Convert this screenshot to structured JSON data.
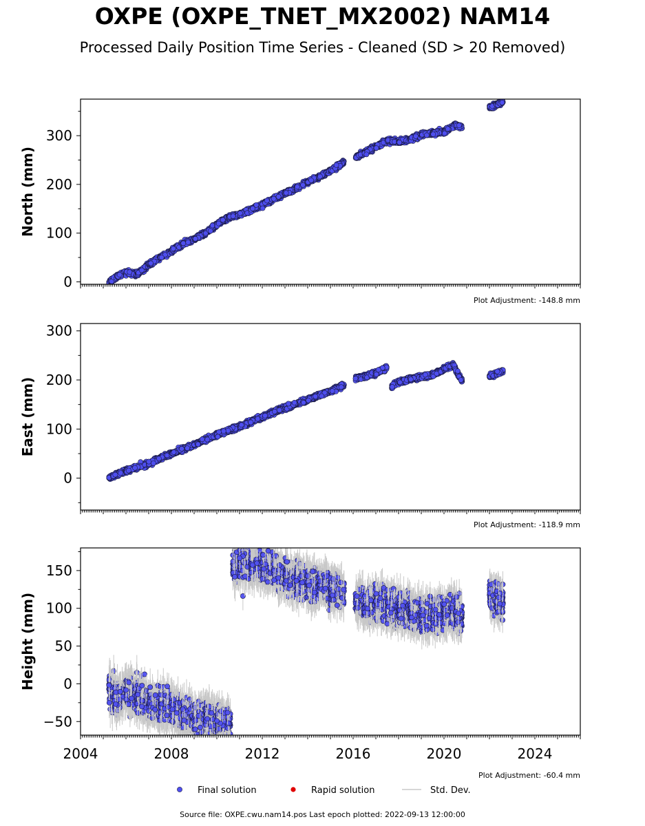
{
  "title": "OXPE (OXPE_TNET_MX2002) NAM14",
  "subtitle": "Processed Daily Position Time Series - Cleaned (SD > 20 Removed)",
  "chart_data": [
    {
      "type": "scatter",
      "ylabel": "North (mm)",
      "adjustment": "Plot Adjustment: -148.8 mm",
      "xlim": [
        2004,
        2026
      ],
      "ylim": [
        -5,
        375
      ],
      "yticks": [
        0,
        100,
        200,
        300
      ],
      "segments": [
        {
          "x": [
            2005.25,
            2005.6,
            2006.0,
            2006.5,
            2007.0,
            2007.5,
            2008.0,
            2008.5,
            2009.0,
            2009.5,
            2010.0,
            2010.5,
            2011.0,
            2011.5,
            2012.0,
            2012.5,
            2013.0,
            2013.5,
            2014.0,
            2014.5,
            2015.0,
            2015.6
          ],
          "y": [
            0,
            10,
            20,
            15,
            35,
            50,
            62,
            78,
            88,
            100,
            118,
            132,
            138,
            148,
            158,
            170,
            182,
            192,
            205,
            215,
            228,
            245
          ]
        },
        {
          "x": [
            2016.1,
            2016.5,
            2017.0,
            2017.5,
            2018.0,
            2018.5,
            2019.0,
            2019.5,
            2020.0,
            2020.5,
            2020.8
          ],
          "y": [
            255,
            265,
            278,
            290,
            288,
            292,
            302,
            305,
            308,
            322,
            318
          ]
        },
        {
          "x": [
            2022.0,
            2022.3,
            2022.6
          ],
          "y": [
            358,
            363,
            370
          ]
        }
      ]
    },
    {
      "type": "scatter",
      "ylabel": "East (mm)",
      "adjustment": "Plot Adjustment: -118.9 mm",
      "xlim": [
        2004,
        2026
      ],
      "ylim": [
        -65,
        315
      ],
      "yticks": [
        0,
        100,
        200,
        300
      ],
      "segments": [
        {
          "x": [
            2005.25,
            2006.0,
            2007.0,
            2008.0,
            2009.0,
            2010.0,
            2011.0,
            2012.0,
            2013.0,
            2014.0,
            2015.0,
            2015.6
          ],
          "y": [
            0,
            15,
            30,
            50,
            68,
            88,
            105,
            125,
            143,
            160,
            177,
            190
          ]
        },
        {
          "x": [
            2016.1,
            2016.5,
            2017.0,
            2017.5
          ],
          "y": [
            203,
            207,
            214,
            225
          ]
        },
        {
          "x": [
            2017.7,
            2018.0,
            2018.5,
            2019.0,
            2019.5,
            2020.0,
            2020.4,
            2020.6,
            2020.8
          ],
          "y": [
            186,
            196,
            202,
            206,
            210,
            222,
            232,
            212,
            198
          ]
        },
        {
          "x": [
            2022.0,
            2022.3,
            2022.6
          ],
          "y": [
            208,
            213,
            218
          ]
        }
      ]
    },
    {
      "type": "scatter",
      "ylabel": "Height (mm)",
      "adjustment": "Plot Adjustment: -60.4 mm",
      "xlim": [
        2004,
        2026
      ],
      "ylim": [
        -68,
        180
      ],
      "yticks": [
        -50,
        0,
        50,
        100,
        150
      ],
      "xticks": [
        2004,
        2008,
        2012,
        2016,
        2020,
        2024
      ],
      "segments": [
        {
          "x": [
            2005.25,
            2005.5,
            2006.0,
            2006.5,
            2007.0,
            2007.5,
            2008.0,
            2008.5,
            2009.0,
            2009.5,
            2010.0,
            2010.6
          ],
          "y": [
            -5,
            -20,
            -12,
            -15,
            -25,
            -28,
            -30,
            -40,
            -50,
            -42,
            -52,
            -50
          ]
        },
        {
          "x": [
            2010.7,
            2011.0,
            2011.5,
            2012.0,
            2012.5,
            2013.0,
            2013.5,
            2014.0,
            2014.5,
            2015.0,
            2015.6
          ],
          "y": [
            155,
            160,
            158,
            155,
            148,
            140,
            138,
            133,
            130,
            125,
            122
          ]
        },
        {
          "x": [
            2016.1,
            2016.5,
            2017.0,
            2017.5,
            2018.0,
            2018.5,
            2019.0,
            2019.5,
            2020.0,
            2020.5,
            2020.8
          ],
          "y": [
            112,
            105,
            108,
            102,
            100,
            98,
            88,
            90,
            92,
            100,
            85
          ]
        },
        {
          "x": [
            2022.0,
            2022.3,
            2022.6
          ],
          "y": [
            118,
            112,
            108
          ]
        }
      ]
    }
  ],
  "legend": {
    "final": "Final solution",
    "rapid": "Rapid solution",
    "std": "Std. Dev."
  },
  "colors": {
    "final": "#4f4ff0",
    "rapid": "#e00000",
    "std": "#c8c8c8"
  },
  "footer": "Source file: OXPE.cwu.nam14.pos  Last epoch plotted: 2022-09-13 12:00:00"
}
